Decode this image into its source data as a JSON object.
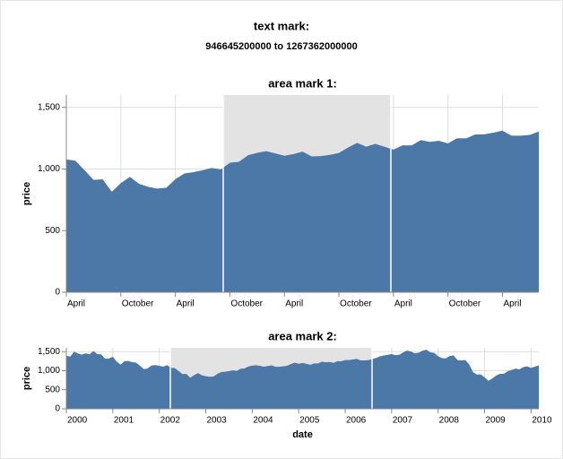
{
  "chart_data": [
    {
      "type": "text",
      "title": "text mark:",
      "text": "946645200000 to 1267362000000"
    },
    {
      "type": "area",
      "title": "area mark 1:",
      "color": "#4c78a8",
      "grid": true,
      "ylabel": "price",
      "xlim": [
        2002.25,
        2006.583
      ],
      "ylim": [
        0,
        1600
      ],
      "xticks": [
        {
          "value": 2002.25,
          "label": "April"
        },
        {
          "value": 2002.75,
          "label": "October"
        },
        {
          "value": 2003.25,
          "label": "April"
        },
        {
          "value": 2003.75,
          "label": "October"
        },
        {
          "value": 2004.25,
          "label": "April"
        },
        {
          "value": 2004.75,
          "label": "October"
        },
        {
          "value": 2005.25,
          "label": "April"
        },
        {
          "value": 2005.75,
          "label": "October"
        },
        {
          "value": 2006.25,
          "label": "April"
        }
      ],
      "yticks": [
        0,
        500,
        {
          "value": 1000,
          "label": "1,000"
        },
        {
          "value": 1500,
          "label": "1,500"
        }
      ],
      "x": [
        2002.25,
        2002.333,
        2002.417,
        2002.5,
        2002.583,
        2002.667,
        2002.75,
        2002.833,
        2002.917,
        2003.0,
        2003.083,
        2003.167,
        2003.25,
        2003.333,
        2003.417,
        2003.5,
        2003.583,
        2003.667,
        2003.75,
        2003.833,
        2003.917,
        2004.0,
        2004.083,
        2004.167,
        2004.25,
        2004.333,
        2004.417,
        2004.5,
        2004.583,
        2004.667,
        2004.75,
        2004.833,
        2004.917,
        2005.0,
        2005.083,
        2005.167,
        2005.25,
        2005.333,
        2005.417,
        2005.5,
        2005.583,
        2005.667,
        2005.75,
        2005.833,
        2005.917,
        2006.0,
        2006.083,
        2006.167,
        2006.25,
        2006.333,
        2006.417,
        2006.5,
        2006.583
      ],
      "values": [
        1076.92,
        1067.14,
        989.82,
        911.62,
        916.07,
        815.28,
        885.76,
        936.31,
        879.82,
        855.7,
        841.15,
        848.18,
        916.92,
        963.59,
        974.5,
        990.31,
        1008.01,
        995.97,
        1050.71,
        1058.2,
        1111.92,
        1131.13,
        1144.94,
        1126.21,
        1107.3,
        1120.68,
        1140.84,
        1101.72,
        1104.24,
        1114.58,
        1130.2,
        1173.82,
        1211.92,
        1181.27,
        1203.6,
        1180.59,
        1156.85,
        1191.5,
        1191.33,
        1234.18,
        1220.33,
        1228.81,
        1207.01,
        1249.48,
        1248.29,
        1280.08,
        1280.66,
        1294.83,
        1310.61,
        1270.09,
        1270.2,
        1276.66,
        1303.82
      ]
    },
    {
      "type": "area",
      "title": "area mark 2:",
      "color": "#4c78a8",
      "grid": true,
      "ylabel": "price",
      "xlabel": "date",
      "xlim": [
        2000,
        2010.167
      ],
      "ylim": [
        0,
        1600
      ],
      "xticks": [
        2000,
        2001,
        2002,
        2003,
        2004,
        2005,
        2006,
        2007,
        2008,
        2009,
        2010
      ],
      "yticks": [
        0,
        500,
        {
          "value": 1000,
          "label": "1,000"
        },
        {
          "value": 1500,
          "label": "1,500"
        }
      ],
      "x": [
        2000.0,
        2000.083,
        2000.167,
        2000.25,
        2000.333,
        2000.417,
        2000.5,
        2000.583,
        2000.667,
        2000.75,
        2000.833,
        2000.917,
        2001.0,
        2001.083,
        2001.167,
        2001.25,
        2001.333,
        2001.417,
        2001.5,
        2001.583,
        2001.667,
        2001.75,
        2001.833,
        2001.917,
        2002.0,
        2002.083,
        2002.167,
        2002.25,
        2002.333,
        2002.417,
        2002.5,
        2002.583,
        2002.667,
        2002.75,
        2002.833,
        2002.917,
        2003.0,
        2003.083,
        2003.167,
        2003.25,
        2003.333,
        2003.417,
        2003.5,
        2003.583,
        2003.667,
        2003.75,
        2003.833,
        2003.917,
        2004.0,
        2004.083,
        2004.167,
        2004.25,
        2004.333,
        2004.417,
        2004.5,
        2004.583,
        2004.667,
        2004.75,
        2004.833,
        2004.917,
        2005.0,
        2005.083,
        2005.167,
        2005.25,
        2005.333,
        2005.417,
        2005.5,
        2005.583,
        2005.667,
        2005.75,
        2005.833,
        2005.917,
        2006.0,
        2006.083,
        2006.167,
        2006.25,
        2006.333,
        2006.417,
        2006.5,
        2006.583,
        2006.667,
        2006.75,
        2006.833,
        2006.917,
        2007.0,
        2007.083,
        2007.167,
        2007.25,
        2007.333,
        2007.417,
        2007.5,
        2007.583,
        2007.667,
        2007.75,
        2007.833,
        2007.917,
        2008.0,
        2008.083,
        2008.167,
        2008.25,
        2008.333,
        2008.417,
        2008.5,
        2008.583,
        2008.667,
        2008.75,
        2008.833,
        2008.917,
        2009.0,
        2009.083,
        2009.167,
        2009.25,
        2009.333,
        2009.417,
        2009.5,
        2009.583,
        2009.667,
        2009.75,
        2009.833,
        2009.917,
        2010.0,
        2010.083,
        2010.167
      ],
      "values": [
        1394.46,
        1366.42,
        1498.58,
        1452.43,
        1420.6,
        1454.6,
        1430.83,
        1517.68,
        1436.51,
        1429.4,
        1314.95,
        1320.28,
        1366.01,
        1239.94,
        1160.33,
        1249.46,
        1255.82,
        1224.38,
        1211.23,
        1133.58,
        1040.94,
        1059.78,
        1139.45,
        1148.08,
        1130.2,
        1106.73,
        1147.39,
        1076.92,
        1067.14,
        989.82,
        911.62,
        916.07,
        815.28,
        885.76,
        936.31,
        879.82,
        855.7,
        841.15,
        848.18,
        916.92,
        963.59,
        974.5,
        990.31,
        1008.01,
        995.97,
        1050.71,
        1058.2,
        1111.92,
        1131.13,
        1144.94,
        1126.21,
        1107.3,
        1120.68,
        1140.84,
        1101.72,
        1104.24,
        1114.58,
        1130.2,
        1173.82,
        1211.92,
        1181.27,
        1203.6,
        1180.59,
        1156.85,
        1191.5,
        1191.33,
        1234.18,
        1220.33,
        1228.81,
        1207.01,
        1249.48,
        1248.29,
        1280.08,
        1280.66,
        1294.83,
        1310.61,
        1270.09,
        1270.2,
        1276.66,
        1303.82,
        1335.85,
        1377.94,
        1400.63,
        1418.3,
        1438.24,
        1406.82,
        1420.86,
        1482.37,
        1530.62,
        1503.35,
        1455.27,
        1473.99,
        1526.75,
        1549.38,
        1481.14,
        1468.36,
        1378.55,
        1330.63,
        1322.7,
        1385.59,
        1400.38,
        1280,
        1267.38,
        1282.83,
        1166.36,
        968.75,
        896.24,
        903.25,
        825.88,
        735.09,
        797.87,
        872.81,
        919.14,
        919.32,
        987.48,
        1020.62,
        1057.08,
        1036.19,
        1095.63,
        1115.1,
        1073.87,
        1104.49,
        1140.45
      ]
    }
  ]
}
